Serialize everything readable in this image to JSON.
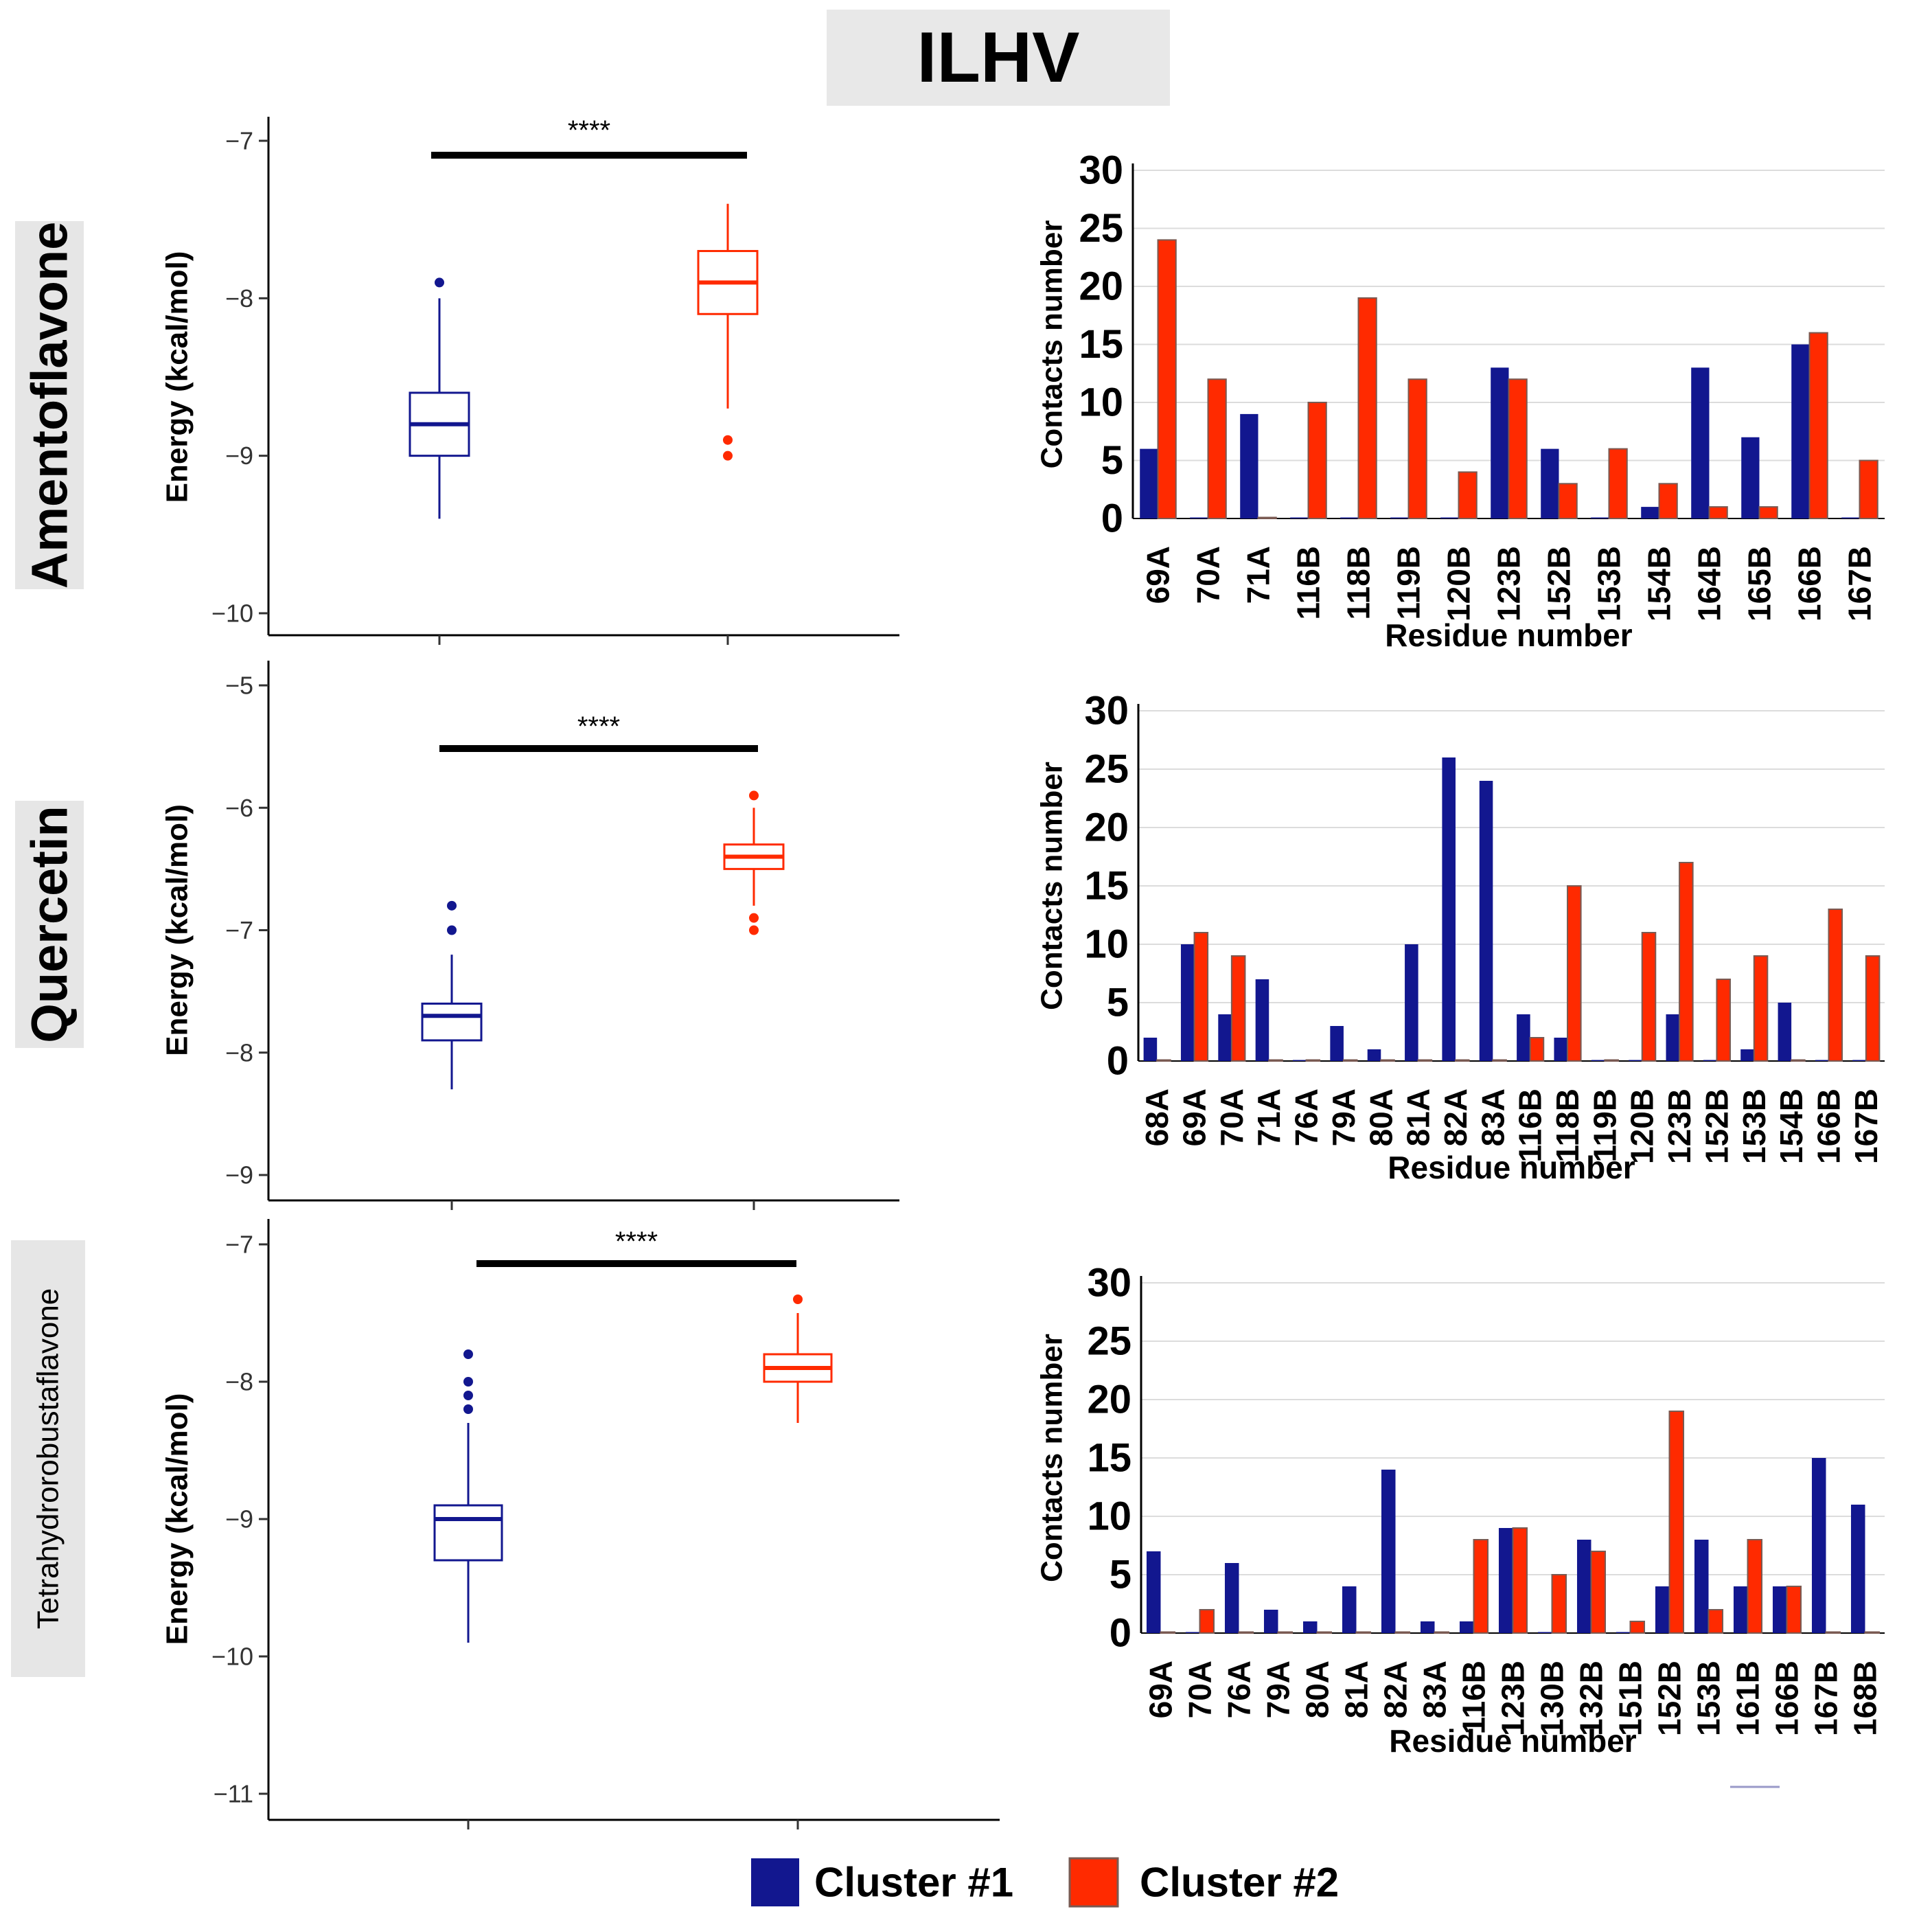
{
  "title": "ILHV",
  "colors": {
    "cluster1": "#12178f",
    "cluster2": "#ff2a00",
    "cluster2_edge": "#7a5a52",
    "title_bg": "#e8e8e8",
    "label_bg": "#e6e6e6",
    "grid": "#dcdcdc"
  },
  "legend": [
    {
      "label": "Cluster #1",
      "color": "#12178f"
    },
    {
      "label": "Cluster #2",
      "color": "#ff2a00"
    }
  ],
  "row_labels": [
    "Amentoflavone",
    "Quercetin",
    "Tetrahydrorobustaflavone"
  ],
  "chart_data": [
    {
      "type": "box",
      "compound": "Amentoflavone",
      "ylabel": "Energy (kcal/mol)",
      "ylim": [
        -10,
        -7
      ],
      "yticks": [
        "-10",
        "-9",
        "-8",
        "-7"
      ],
      "significance": "****",
      "boxes": [
        {
          "name": "Cluster #1",
          "whisker_low": -9.4,
          "q1": -9.0,
          "median": -8.8,
          "q3": -8.6,
          "whisker_high": -8.0,
          "outliers": [
            -7.9
          ]
        },
        {
          "name": "Cluster #2",
          "whisker_low": -8.7,
          "q1": -8.1,
          "median": -7.9,
          "q3": -7.7,
          "whisker_high": -7.4,
          "outliers": [
            -8.9,
            -9.0
          ]
        }
      ]
    },
    {
      "type": "box",
      "compound": "Quercetin",
      "ylabel": "Energy (kcal/mol)",
      "ylim": [
        -9,
        -5
      ],
      "yticks": [
        "-9",
        "-8",
        "-7",
        "-6",
        "-5"
      ],
      "significance": "****",
      "boxes": [
        {
          "name": "Cluster #1",
          "whisker_low": -8.3,
          "q1": -7.9,
          "median": -7.7,
          "q3": -7.6,
          "whisker_high": -7.2,
          "outliers": [
            -6.8,
            -7.0
          ]
        },
        {
          "name": "Cluster #2",
          "whisker_low": -6.8,
          "q1": -6.5,
          "median": -6.4,
          "q3": -6.3,
          "whisker_high": -6.0,
          "outliers": [
            -5.9,
            -6.9,
            -7.0
          ]
        }
      ]
    },
    {
      "type": "box",
      "compound": "Tetrahydrorobustaflavone",
      "ylabel": "Energy (kcal/mol)",
      "ylim": [
        -11,
        -7
      ],
      "yticks": [
        "-11",
        "-10",
        "-9",
        "-8",
        "-7"
      ],
      "significance": "****",
      "boxes": [
        {
          "name": "Cluster #1",
          "whisker_low": -9.9,
          "q1": -9.3,
          "median": -9.0,
          "q3": -8.9,
          "whisker_high": -8.3,
          "outliers": [
            -7.8,
            -8.0,
            -8.1,
            -8.2
          ]
        },
        {
          "name": "Cluster #2",
          "whisker_low": -8.3,
          "q1": -8.0,
          "median": -7.9,
          "q3": -7.8,
          "whisker_high": -7.5,
          "outliers": [
            -7.4
          ]
        }
      ]
    },
    {
      "type": "bar",
      "compound": "Amentoflavone",
      "xlabel": "Residue number",
      "ylabel": "Contacts number",
      "ylim": [
        0,
        30
      ],
      "yticks": [
        "0",
        "5",
        "10",
        "15",
        "20",
        "25",
        "30"
      ],
      "categories": [
        "69A",
        "70A",
        "71A",
        "116B",
        "118B",
        "119B",
        "120B",
        "123B",
        "152B",
        "153B",
        "154B",
        "164B",
        "165B",
        "166B",
        "167B"
      ],
      "series": [
        {
          "name": "Cluster #1",
          "values": [
            6,
            0,
            9,
            0,
            0,
            0,
            0,
            13,
            6,
            0,
            1,
            13,
            7,
            15,
            0
          ]
        },
        {
          "name": "Cluster #2",
          "values": [
            24,
            12,
            0,
            10,
            19,
            12,
            4,
            12,
            3,
            6,
            3,
            1,
            1,
            16,
            5
          ]
        }
      ]
    },
    {
      "type": "bar",
      "compound": "Quercetin",
      "xlabel": "Residue number",
      "ylabel": "Contacts number",
      "ylim": [
        0,
        30
      ],
      "yticks": [
        "0",
        "5",
        "10",
        "15",
        "20",
        "25",
        "30"
      ],
      "categories": [
        "68A",
        "69A",
        "70A",
        "71A",
        "76A",
        "79A",
        "80A",
        "81A",
        "82A",
        "83A",
        "116B",
        "118B",
        "119B",
        "120B",
        "123B",
        "152B",
        "153B",
        "154B",
        "166B",
        "167B"
      ],
      "series": [
        {
          "name": "Cluster #1",
          "values": [
            2,
            10,
            4,
            7,
            0,
            3,
            1,
            10,
            26,
            24,
            4,
            2,
            0,
            0,
            4,
            0,
            1,
            5,
            0,
            0
          ]
        },
        {
          "name": "Cluster #2",
          "values": [
            0,
            11,
            9,
            0,
            0,
            0,
            0,
            0,
            0,
            0,
            2,
            15,
            0,
            11,
            17,
            7,
            9,
            0,
            13,
            9
          ]
        }
      ]
    },
    {
      "type": "bar",
      "compound": "Tetrahydrorobustaflavone",
      "xlabel": "Residue number",
      "ylabel": "Contacts number",
      "ylim": [
        0,
        30
      ],
      "yticks": [
        "0",
        "5",
        "10",
        "15",
        "20",
        "25",
        "30"
      ],
      "categories": [
        "69A",
        "70A",
        "76A",
        "79A",
        "80A",
        "81A",
        "82A",
        "83A",
        "116B",
        "123B",
        "130B",
        "132B",
        "151B",
        "152B",
        "153B",
        "161B",
        "166B",
        "167B",
        "168B"
      ],
      "series": [
        {
          "name": "Cluster #1",
          "values": [
            7,
            0,
            6,
            2,
            1,
            4,
            14,
            1,
            1,
            9,
            0,
            8,
            0,
            4,
            8,
            4,
            4,
            15,
            11
          ]
        },
        {
          "name": "Cluster #2",
          "values": [
            0,
            2,
            0,
            0,
            0,
            0,
            0,
            0,
            8,
            9,
            5,
            7,
            1,
            19,
            2,
            8,
            4,
            0,
            0
          ]
        }
      ]
    }
  ]
}
